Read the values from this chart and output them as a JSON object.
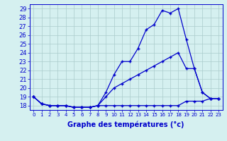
{
  "xlabel": "Graphe des températures (°c)",
  "hours": [
    0,
    1,
    2,
    3,
    4,
    5,
    6,
    7,
    8,
    9,
    10,
    11,
    12,
    13,
    14,
    15,
    16,
    17,
    18,
    19,
    20,
    21,
    22,
    23
  ],
  "temp_max": [
    19,
    18.2,
    18,
    18,
    18,
    17.8,
    17.8,
    17.8,
    18,
    19.5,
    21.5,
    23,
    23,
    24.5,
    26.6,
    27.2,
    28.8,
    28.5,
    29,
    25.5,
    22.2,
    19.5,
    18.8,
    18.8
  ],
  "temp_mid": [
    19,
    18.2,
    18,
    18,
    18,
    17.8,
    17.8,
    17.8,
    18,
    19,
    20,
    20.5,
    21,
    21.5,
    22,
    22.5,
    23,
    23.5,
    24,
    22.2,
    22.2,
    19.5,
    18.8,
    18.8
  ],
  "temp_min": [
    19,
    18.2,
    18,
    18,
    18,
    17.8,
    17.8,
    17.8,
    18,
    18,
    18,
    18,
    18,
    18,
    18,
    18,
    18,
    18,
    18,
    18.5,
    18.5,
    18.5,
    18.8,
    18.8
  ],
  "ylim": [
    17.5,
    29.5
  ],
  "yticks": [
    18,
    19,
    20,
    21,
    22,
    23,
    24,
    25,
    26,
    27,
    28,
    29
  ],
  "line_color": "#0000cc",
  "bg_color": "#d5f0f0",
  "grid_color": "#aacccc",
  "marker": "+",
  "marker_size": 3.5,
  "linewidth": 0.9,
  "xlabel_fontsize": 7,
  "ytick_fontsize": 6,
  "xtick_fontsize": 5
}
